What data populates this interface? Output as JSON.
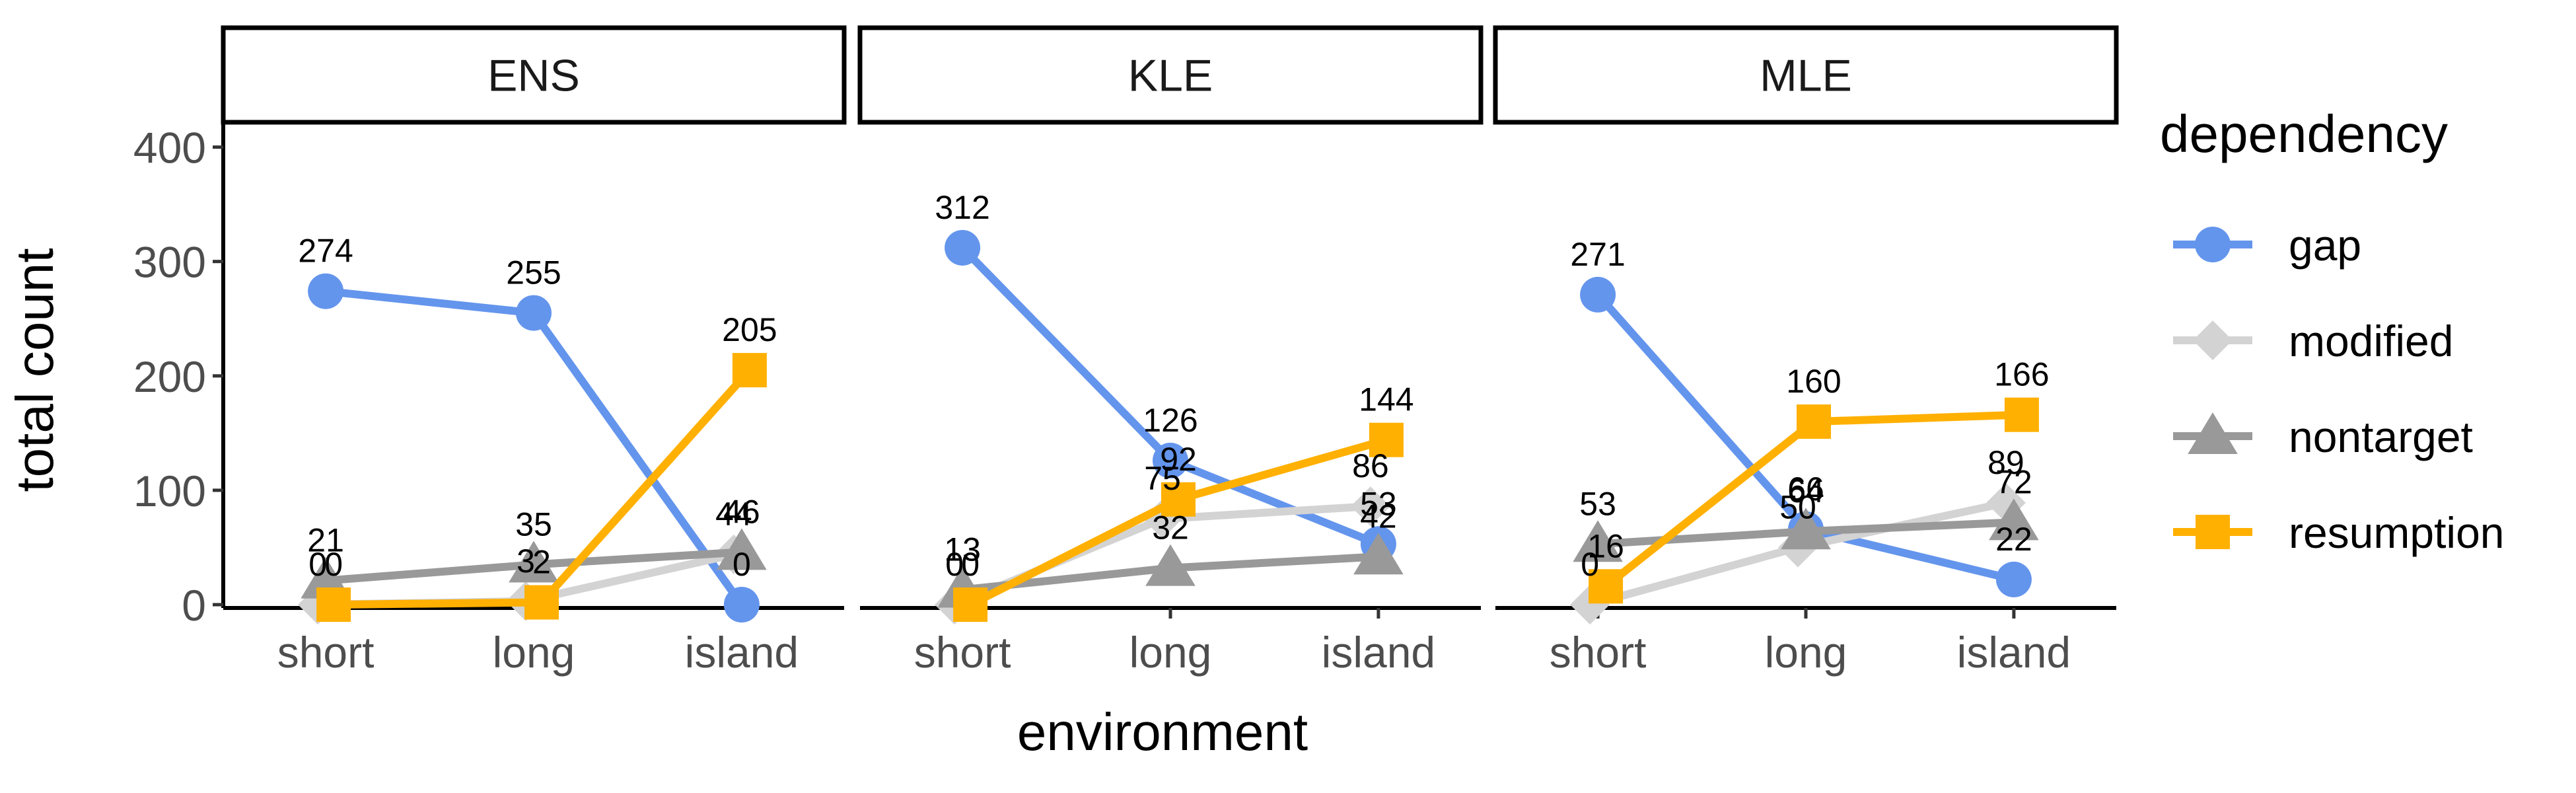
{
  "chart_data": {
    "type": "line",
    "facets": [
      "ENS",
      "KLE",
      "MLE"
    ],
    "categories": [
      "short",
      "long",
      "island"
    ],
    "xlabel": "environment",
    "ylabel": "total count",
    "ylim": [
      0,
      420
    ],
    "yticks": [
      0,
      100,
      200,
      300,
      400
    ],
    "grid": false,
    "legend": {
      "title": "dependency",
      "placement": "right"
    },
    "series": [
      {
        "name": "gap",
        "color": "#6495ED",
        "marker": "circle",
        "values": {
          "ENS": [
            274,
            255,
            0
          ],
          "KLE": [
            312,
            126,
            53
          ],
          "MLE": [
            271,
            66,
            22
          ]
        }
      },
      {
        "name": "modified",
        "color": "#D3D3D3",
        "marker": "diamond",
        "values": {
          "ENS": [
            0,
            3,
            44
          ],
          "KLE": [
            0,
            75,
            86
          ],
          "MLE": [
            0,
            50,
            89
          ]
        }
      },
      {
        "name": "nontarget",
        "color": "#999999",
        "marker": "triangle",
        "values": {
          "ENS": [
            21,
            35,
            46
          ],
          "KLE": [
            13,
            32,
            42
          ],
          "MLE": [
            53,
            64,
            72
          ]
        }
      },
      {
        "name": "resumption",
        "color": "#FFB000",
        "marker": "square",
        "values": {
          "ENS": [
            0,
            2,
            205
          ],
          "KLE": [
            0,
            92,
            144
          ],
          "MLE": [
            16,
            160,
            166
          ]
        }
      }
    ]
  }
}
